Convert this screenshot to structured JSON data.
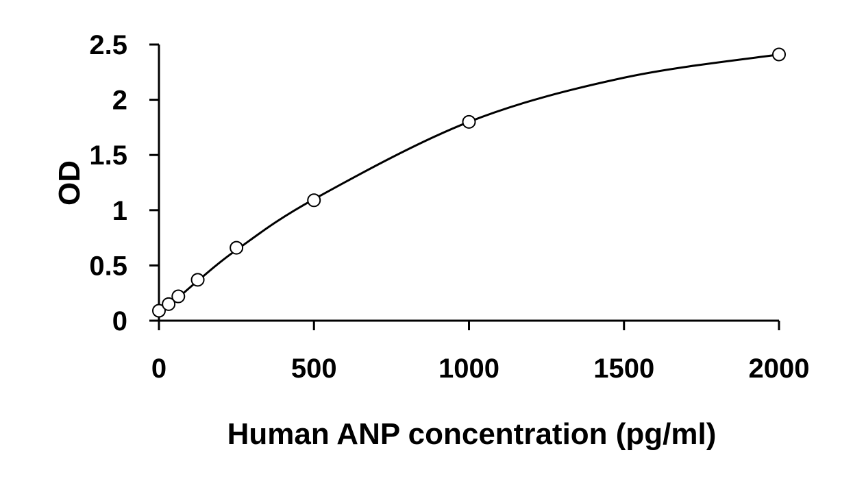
{
  "chart_data": {
    "type": "scatter",
    "title": "",
    "xlabel": "Human ANP concentration (pg/ml)",
    "ylabel": "OD",
    "xlim": [
      0,
      2000
    ],
    "ylim": [
      0,
      2.5
    ],
    "xticks": [
      "0",
      "500",
      "1000",
      "1500",
      "2000"
    ],
    "yticks": [
      "0",
      "0.5",
      "1",
      "1.5",
      "2",
      "2.5"
    ],
    "grid": false,
    "legend": "none",
    "series": [
      {
        "marker": "open-circle",
        "x": [
          0,
          31.25,
          62.5,
          125,
          250,
          500,
          1000,
          2000
        ],
        "y": [
          0.09,
          0.15,
          0.22,
          0.37,
          0.66,
          1.09,
          1.8,
          2.41
        ]
      }
    ],
    "fit_curve": {
      "type": "smooth-line",
      "x": [
        0,
        31.25,
        62.5,
        125,
        250,
        500,
        1000,
        1500,
        2000
      ],
      "y": [
        0.09,
        0.15,
        0.21,
        0.36,
        0.64,
        1.1,
        1.8,
        2.2,
        2.41
      ]
    },
    "colors": {
      "axis": "#000000",
      "curve": "#000000",
      "marker_stroke": "#000000",
      "marker_fill": "#ffffff"
    }
  }
}
